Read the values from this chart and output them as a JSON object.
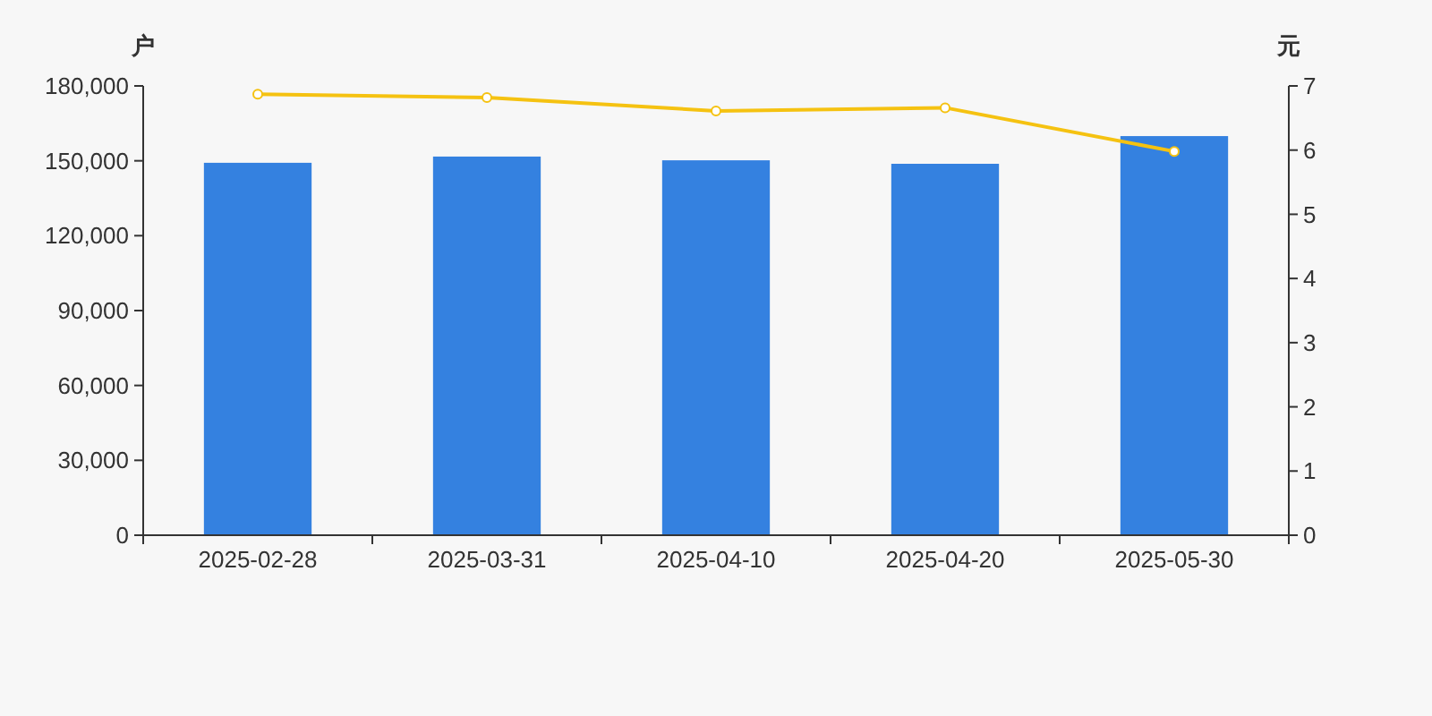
{
  "chart_data": {
    "type": "bar",
    "ylabel": "户",
    "y2label": "元",
    "categories": [
      "2025-02-28",
      "2025-03-31",
      "2025-04-10",
      "2025-04-20",
      "2025-05-30"
    ],
    "series": [
      {
        "color": "#3481e0",
        "values": [
          149200,
          151700,
          150200,
          148800,
          159900
        ]
      },
      {
        "type": "line",
        "axis": "y2",
        "color": "#f5c211",
        "marker": "circle",
        "values": [
          6.87,
          6.82,
          6.61,
          6.66,
          5.98
        ]
      }
    ],
    "ylim": [
      0,
      180000
    ],
    "yticks": [
      0,
      {
        "value": 30000,
        "label": "30,000"
      },
      {
        "value": 60000,
        "label": "60,000"
      },
      {
        "value": 90000,
        "label": "90,000"
      },
      {
        "value": 120000,
        "label": "120,000"
      },
      {
        "value": 150000,
        "label": "150,000"
      },
      {
        "value": 180000,
        "label": "180,000"
      }
    ],
    "y2lim": [
      0,
      7
    ],
    "y2ticks": [
      0,
      1,
      2,
      3,
      4,
      5,
      6,
      7
    ],
    "grid": false
  }
}
